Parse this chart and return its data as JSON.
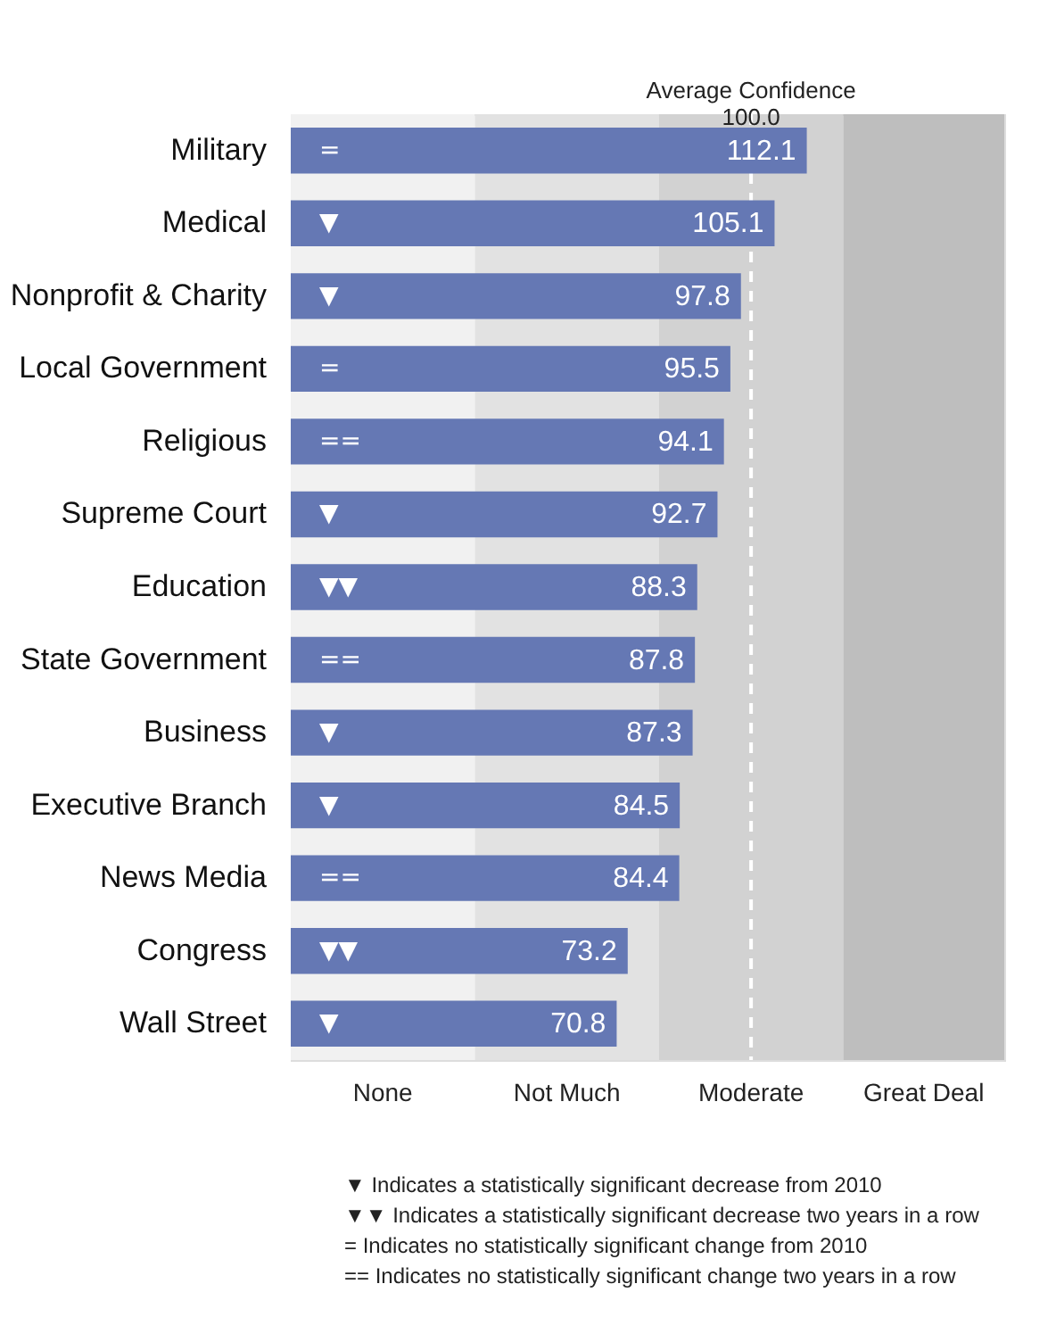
{
  "chart_data": {
    "type": "bar",
    "orientation": "horizontal",
    "categories": [
      "Military",
      "Medical",
      "Nonprofit & Charity",
      "Local Government",
      "Religious",
      "Supreme Court",
      "Education",
      "State Government",
      "Business",
      "Executive Branch",
      "News Media",
      "Congress",
      "Wall Street"
    ],
    "values": [
      112.1,
      105.1,
      97.8,
      95.5,
      94.1,
      92.7,
      88.3,
      87.8,
      87.3,
      84.5,
      84.4,
      73.2,
      70.8
    ],
    "color": "#6578b4",
    "data_labels": true,
    "xlim": [
      0,
      155
    ],
    "tick_labels": "y",
    "grid": false,
    "bands": [
      {
        "axis": "x",
        "from": 0,
        "to": 40,
        "label": "None",
        "color": "#f1f1f1"
      },
      {
        "axis": "x",
        "from": 40,
        "to": 80,
        "label": "Not Much",
        "color": "#e2e2e2"
      },
      {
        "axis": "x",
        "from": 80,
        "to": 120,
        "label": "Moderate",
        "color": "#d2d2d2"
      },
      {
        "axis": "x",
        "from": 120,
        "to": 155,
        "label": "Great Deal",
        "color": "#bebebe"
      }
    ],
    "ref_lines": [
      {
        "axis": "x",
        "value": 100,
        "label": "Average Confidence 100.0",
        "color": "#ffffff",
        "line_style": "dashed"
      }
    ],
    "annotations": [
      {
        "text": "=",
        "y": "Military"
      },
      {
        "text": "▼",
        "y": "Medical"
      },
      {
        "text": "▼",
        "y": "Nonprofit & Charity"
      },
      {
        "text": "=",
        "y": "Local Government"
      },
      {
        "text": "==",
        "y": "Religious"
      },
      {
        "text": "▼",
        "y": "Supreme Court"
      },
      {
        "text": "▼▼",
        "y": "Education"
      },
      {
        "text": "==",
        "y": "State Government"
      },
      {
        "text": "▼",
        "y": "Business"
      },
      {
        "text": "▼",
        "y": "Executive Branch"
      },
      {
        "text": "==",
        "y": "News Media"
      },
      {
        "text": "▼▼",
        "y": "Congress"
      },
      {
        "text": "▼",
        "y": "Wall Street"
      },
      "▼   Indicates a statistically significant decrease from 2010",
      "▼▼  Indicates a statistically significant decrease two years in a row",
      "=   Indicates no statistically significant change from 2010",
      "==  Indicates no statistically significant change two years in a row"
    ]
  }
}
